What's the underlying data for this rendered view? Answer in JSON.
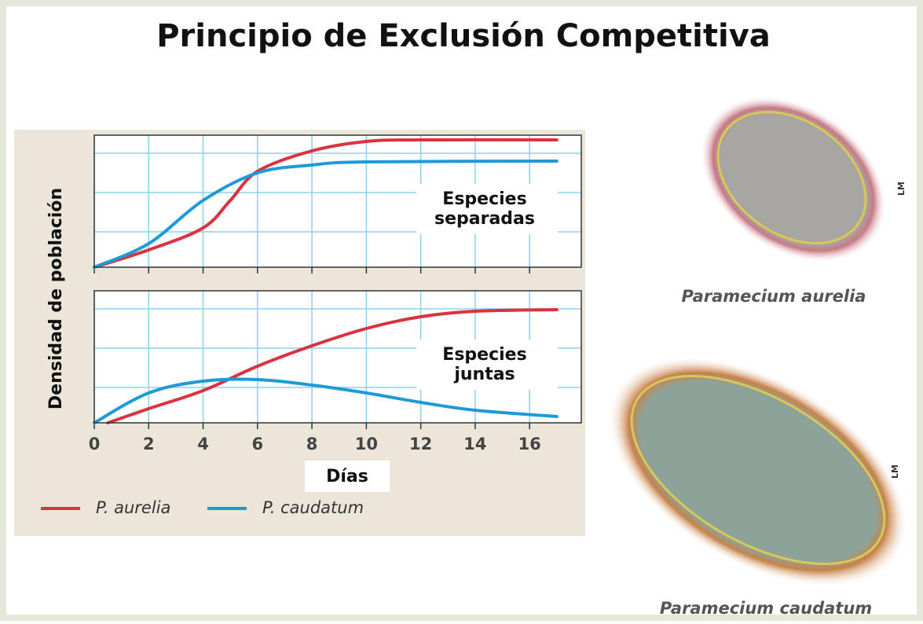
{
  "title": "Principio de Exclusión Competitiva",
  "chart_data": [
    {
      "type": "line",
      "annotation": [
        "Especies",
        "separadas"
      ],
      "ylabel": "Densidad de población",
      "xlim": [
        0,
        17.9
      ],
      "ylim": [
        0,
        3.36
      ],
      "xticks": [
        0,
        2,
        4,
        6,
        8,
        10,
        12,
        14,
        16
      ],
      "yticks": [
        0.9,
        1.9,
        2.9
      ],
      "grid": true,
      "series": [
        {
          "name": "P. aurelia",
          "color": "#d9333f",
          "x": [
            0,
            2,
            4,
            5,
            6,
            8,
            10,
            12,
            17
          ],
          "values": [
            0,
            0.44,
            1.0,
            1.7,
            2.44,
            2.96,
            3.2,
            3.24,
            3.24
          ]
        },
        {
          "name": "P. caudatum",
          "color": "#1e9ad6",
          "x": [
            0,
            2,
            4,
            6,
            8,
            10,
            17
          ],
          "values": [
            0,
            0.6,
            1.7,
            2.4,
            2.6,
            2.68,
            2.7
          ]
        }
      ]
    },
    {
      "type": "line",
      "annotation": [
        "Especies",
        "juntas"
      ],
      "xlabel": "Días",
      "xlim": [
        0,
        17.9
      ],
      "ylim": [
        0,
        3.36
      ],
      "xticks": [
        0,
        2,
        4,
        6,
        8,
        10,
        12,
        14,
        16
      ],
      "yticks": [
        0.9,
        1.9,
        2.9
      ],
      "grid": true,
      "series": [
        {
          "color": "#d9333f",
          "x": [
            0.5,
            2,
            4,
            6,
            8,
            10,
            12,
            14,
            17
          ],
          "values": [
            0,
            0.36,
            0.82,
            1.44,
            1.96,
            2.4,
            2.7,
            2.84,
            2.88
          ]
        },
        {
          "color": "#1e9ad6",
          "x": [
            0,
            2,
            4,
            6,
            8,
            10,
            12,
            14,
            17
          ],
          "values": [
            0,
            0.76,
            1.06,
            1.1,
            0.96,
            0.76,
            0.52,
            0.32,
            0.16
          ]
        }
      ]
    }
  ],
  "images": [
    {
      "caption": "Paramecium aurelia",
      "scale": "LM"
    },
    {
      "caption": "Paramecium caudatum",
      "scale": "LM"
    }
  ]
}
